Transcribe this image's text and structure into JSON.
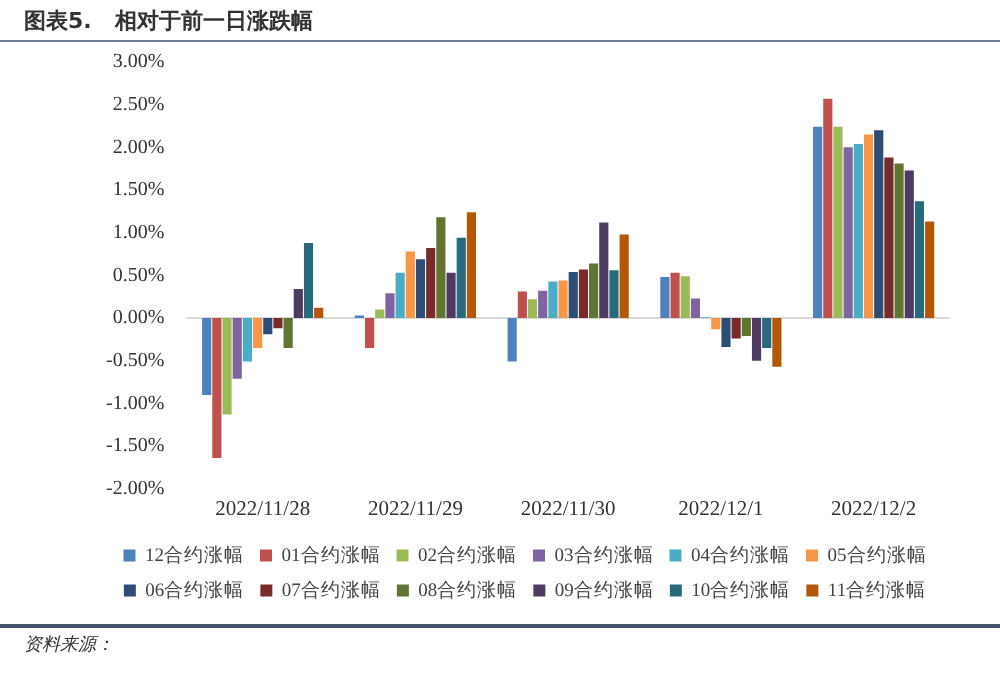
{
  "chart_data": {
    "type": "bar",
    "title": "图表5.   相对于前一日涨跌幅",
    "categories": [
      "2022/11/28",
      "2022/11/29",
      "2022/11/30",
      "2022/12/1",
      "2022/12/2"
    ],
    "series": [
      {
        "name": "12合约涨幅",
        "color": "#4f81bd",
        "values": [
          -0.9,
          0.03,
          -0.51,
          0.48,
          2.24
        ]
      },
      {
        "name": "01合约涨幅",
        "color": "#c0504d",
        "values": [
          -1.64,
          -0.35,
          0.31,
          0.53,
          2.57
        ]
      },
      {
        "name": "02合约涨幅",
        "color": "#9bbb59",
        "values": [
          -1.13,
          0.1,
          0.22,
          0.49,
          2.24
        ]
      },
      {
        "name": "03合约涨幅",
        "color": "#8064a2",
        "values": [
          -0.71,
          0.29,
          0.32,
          0.23,
          2.0
        ]
      },
      {
        "name": "04合约涨幅",
        "color": "#4bacc6",
        "values": [
          -0.51,
          0.53,
          0.43,
          0.01,
          2.04
        ]
      },
      {
        "name": "05合约涨幅",
        "color": "#f79646",
        "values": [
          -0.35,
          0.78,
          0.44,
          -0.13,
          2.15
        ]
      },
      {
        "name": "06合约涨幅",
        "color": "#2c4d75",
        "values": [
          -0.19,
          0.69,
          0.54,
          -0.34,
          2.2
        ]
      },
      {
        "name": "07合约涨幅",
        "color": "#772c2a",
        "values": [
          -0.12,
          0.82,
          0.57,
          -0.24,
          1.88
        ]
      },
      {
        "name": "08合约涨幅",
        "color": "#5f7530",
        "values": [
          -0.35,
          1.18,
          0.64,
          -0.21,
          1.81
        ]
      },
      {
        "name": "09合约涨幅",
        "color": "#4d3b62",
        "values": [
          0.34,
          0.53,
          1.12,
          -0.5,
          1.73
        ]
      },
      {
        "name": "10合约涨幅",
        "color": "#276a7c",
        "values": [
          0.88,
          0.94,
          0.56,
          -0.35,
          1.37
        ]
      },
      {
        "name": "11合约涨幅",
        "color": "#b65708",
        "values": [
          0.12,
          1.24,
          0.98,
          -0.57,
          1.13
        ]
      }
    ],
    "ylim": [
      -2,
      3
    ],
    "yticks": [
      {
        "value": -2,
        "label": "-2.00%"
      },
      {
        "value": -1.5,
        "label": "-1.50%"
      },
      {
        "value": -1,
        "label": "-1.00%"
      },
      {
        "value": -0.5,
        "label": "-0.50%"
      },
      {
        "value": 0,
        "label": "0.00%"
      },
      {
        "value": 0.5,
        "label": "0.50%"
      },
      {
        "value": 1,
        "label": "1.00%"
      },
      {
        "value": 1.5,
        "label": "1.50%"
      },
      {
        "value": 2,
        "label": "2.00%"
      },
      {
        "value": 2.5,
        "label": "2.50%"
      },
      {
        "value": 3,
        "label": "3.00%"
      }
    ],
    "legend": "bottom",
    "annotations": [
      "资料来源："
    ]
  }
}
